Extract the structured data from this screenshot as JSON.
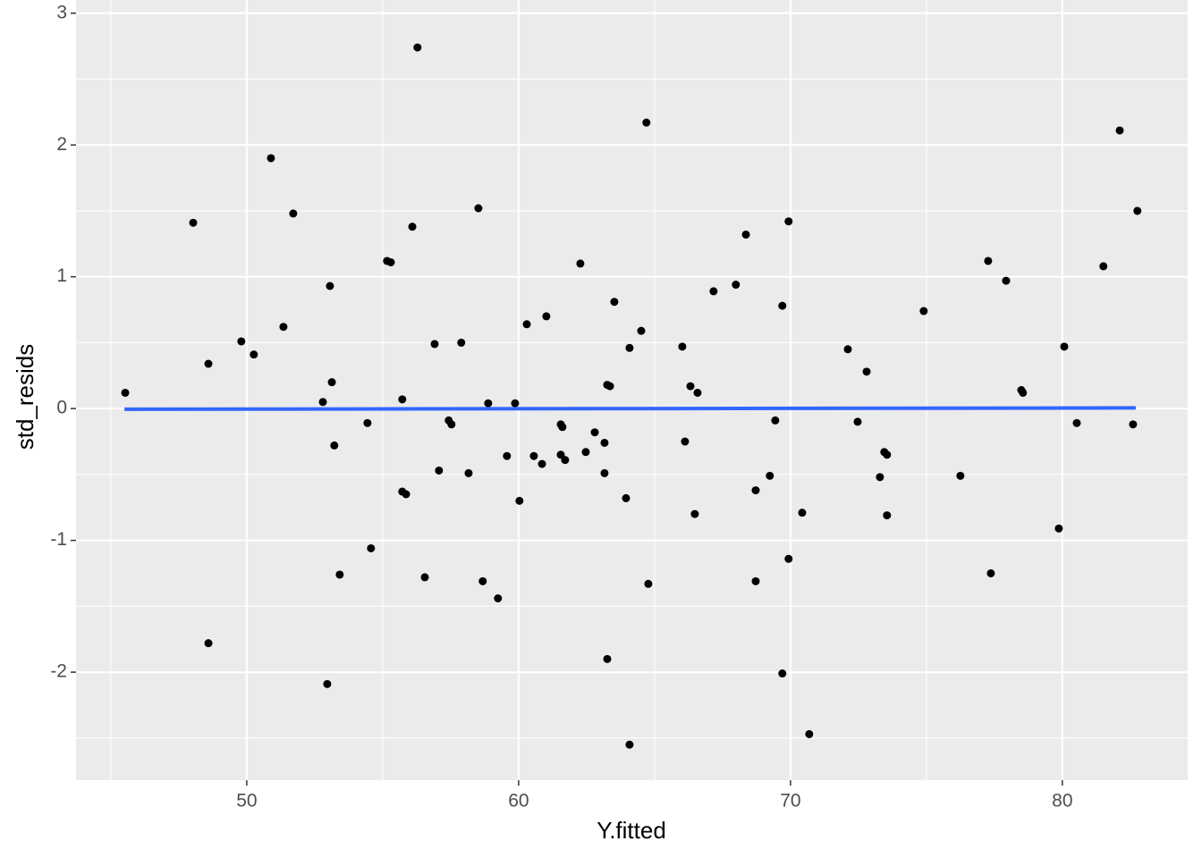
{
  "chart_data": {
    "type": "scatter",
    "x_label": "Y.fitted",
    "y_label": "std_resids",
    "xlim": [
      43.72,
      84.61
    ],
    "ylim": [
      -2.82,
      3.1
    ],
    "xticks": [
      50,
      60,
      70,
      80
    ],
    "yticks": [
      -2,
      -1,
      0,
      1,
      2,
      3
    ],
    "x_minor_breaks": [
      45,
      55,
      65,
      75
    ],
    "y_minor_breaks": [
      -2.5,
      -1.5,
      -0.5,
      0.5,
      1.5,
      2.5
    ],
    "grid": true,
    "panel_color": "#ebebeb",
    "series": [
      {
        "type": "scatter",
        "color": "#000000",
        "x": [
          45.53,
          48.03,
          48.59,
          48.59,
          49.8,
          50.26,
          50.89,
          51.35,
          51.71,
          52.8,
          52.96,
          53.06,
          53.13,
          53.22,
          53.42,
          54.44,
          54.57,
          55.16,
          55.3,
          55.72,
          55.72,
          55.86,
          56.09,
          56.28,
          56.55,
          56.91,
          57.07,
          57.43,
          57.53,
          57.89,
          58.16,
          58.52,
          58.68,
          58.88,
          59.24,
          59.57,
          59.87,
          60.03,
          60.3,
          60.56,
          60.86,
          61.02,
          61.55,
          61.61,
          61.55,
          61.71,
          62.27,
          62.47,
          62.8,
          63.16,
          63.16,
          63.26,
          63.36,
          63.26,
          63.52,
          63.95,
          64.08,
          64.08,
          64.51,
          64.7,
          64.77,
          66.02,
          66.12,
          66.32,
          66.48,
          66.58,
          67.17,
          67.99,
          68.36,
          68.72,
          68.72,
          69.24,
          69.44,
          69.7,
          69.7,
          69.93,
          69.93,
          70.43,
          70.69,
          72.11,
          72.47,
          72.8,
          73.29,
          73.45,
          73.55,
          73.55,
          74.9,
          76.25,
          77.27,
          77.37,
          77.93,
          78.49,
          78.55,
          79.87,
          80.07,
          80.53,
          81.51,
          82.11,
          82.6,
          82.76
        ],
        "values": [
          0.12,
          1.41,
          0.34,
          -1.78,
          0.51,
          0.41,
          1.9,
          0.62,
          1.48,
          0.05,
          -2.09,
          0.93,
          0.2,
          -0.28,
          -1.26,
          -0.11,
          -1.06,
          1.12,
          1.11,
          0.07,
          -0.63,
          -0.65,
          1.38,
          2.74,
          -1.28,
          0.49,
          -0.47,
          -0.09,
          -0.12,
          0.5,
          -0.49,
          1.52,
          -1.31,
          0.04,
          -1.44,
          -0.36,
          0.04,
          -0.7,
          0.64,
          -0.36,
          -0.42,
          0.7,
          -0.12,
          -0.14,
          -0.35,
          -0.39,
          1.1,
          -0.33,
          -0.18,
          -0.26,
          -0.49,
          0.18,
          0.17,
          -1.9,
          0.81,
          -0.68,
          0.46,
          -2.55,
          0.59,
          2.17,
          -1.33,
          0.47,
          -0.25,
          0.17,
          -0.8,
          0.12,
          0.89,
          0.94,
          1.32,
          -0.62,
          -1.31,
          -0.51,
          -0.09,
          0.78,
          -2.01,
          1.42,
          -1.14,
          -0.79,
          -2.47,
          0.45,
          -0.1,
          0.28,
          -0.52,
          -0.33,
          -0.35,
          -0.81,
          0.74,
          -0.51,
          1.12,
          -1.25,
          0.97,
          0.14,
          0.12,
          -0.91,
          0.47,
          -0.11,
          1.08,
          2.11,
          -0.12,
          1.5
        ]
      },
      {
        "type": "line",
        "color": "#3366ff",
        "x": [
          45.5,
          82.7
        ],
        "values": [
          -0.005,
          0.005
        ]
      }
    ]
  }
}
